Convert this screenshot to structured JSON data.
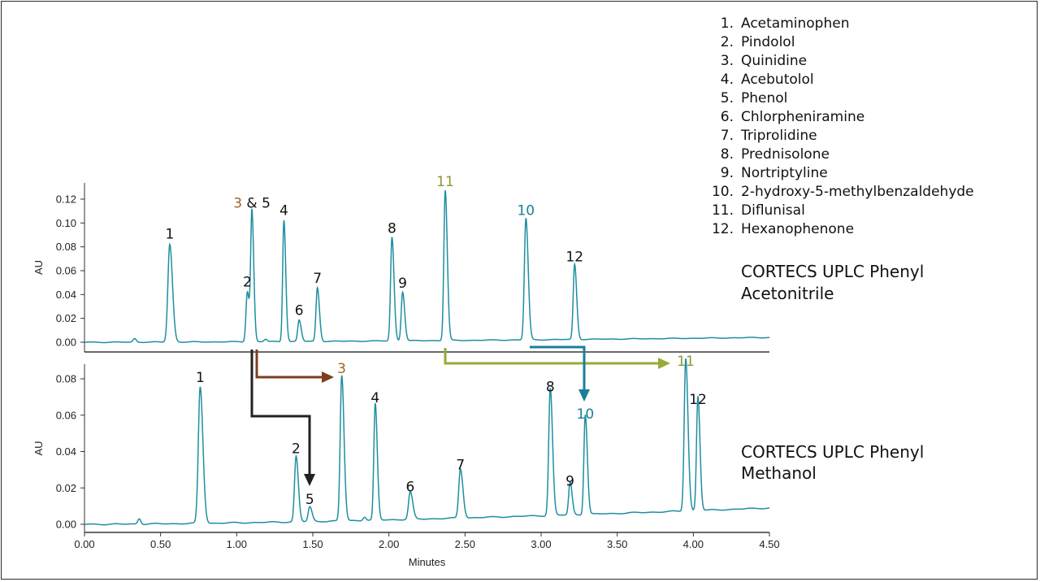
{
  "colors": {
    "trace": "#1f8ea0",
    "peak3": "#a0602a",
    "peak10": "#1a7f99",
    "peak11": "#8a9a2c",
    "arrow3": "#7b3f1d",
    "arrow5": "#222222",
    "arrow10": "#1a7f99",
    "arrow11": "#9aaa33"
  },
  "legend": [
    "1. Acetaminophen",
    "2. Pindolol",
    "3. Quinidine",
    "4. Acebutolol",
    "5. Phenol",
    "6. Chlorpheniramine",
    "7. Triprolidine",
    "8. Prednisolone",
    "9. Nortriptyline",
    "10. 2-hydroxy-5-methylbenzaldehyde",
    "11. Diflunisal",
    "12. Hexanophenone"
  ],
  "chart_data": [
    {
      "type": "line",
      "panel": "top",
      "label_line1": "CORTECS UPLC Phenyl",
      "label_line2": "Acetonitrile",
      "ylabel": "AU",
      "xlim": [
        0,
        4.5
      ],
      "ylim": [
        -0.005,
        0.13
      ],
      "yticks": [
        "0.00",
        "0.02",
        "0.04",
        "0.06",
        "0.08",
        "0.10",
        "0.12"
      ],
      "baseline_start": 0.0,
      "baseline_end": 0.004,
      "peaks": [
        {
          "id": "1",
          "label": "1",
          "x": 0.56,
          "y": 0.082,
          "w": 0.012
        },
        {
          "id": "2",
          "label": "2",
          "x": 1.07,
          "y": 0.042,
          "w": 0.009
        },
        {
          "id": "3&5",
          "label": "",
          "x": 1.1,
          "y": 0.108,
          "w": 0.008
        },
        {
          "id": "4",
          "label": "4",
          "x": 1.31,
          "y": 0.102,
          "w": 0.008
        },
        {
          "id": "6",
          "label": "6",
          "x": 1.41,
          "y": 0.018,
          "w": 0.009
        },
        {
          "id": "7",
          "label": "7",
          "x": 1.53,
          "y": 0.045,
          "w": 0.009
        },
        {
          "id": "8",
          "label": "8",
          "x": 2.02,
          "y": 0.087,
          "w": 0.009
        },
        {
          "id": "9",
          "label": "9",
          "x": 2.09,
          "y": 0.041,
          "w": 0.009
        },
        {
          "id": "11",
          "label": "11",
          "x": 2.37,
          "y": 0.126,
          "w": 0.009
        },
        {
          "id": "10",
          "label": "10",
          "x": 2.9,
          "y": 0.102,
          "w": 0.01
        },
        {
          "id": "12",
          "label": "12",
          "x": 3.22,
          "y": 0.063,
          "w": 0.009
        }
      ],
      "minor_bumps": [
        {
          "x": 0.33,
          "y": 0.003,
          "w": 0.01
        },
        {
          "x": 1.19,
          "y": 0.002,
          "w": 0.01
        }
      ],
      "combined_label": {
        "part1": "3",
        "part2": "& 5"
      }
    },
    {
      "type": "line",
      "panel": "bottom",
      "label_line1": "CORTECS UPLC Phenyl",
      "label_line2": "Methanol",
      "ylabel": "AU",
      "xlabel": "Minutes",
      "xlim": [
        0,
        4.5
      ],
      "ylim": [
        -0.004,
        0.088
      ],
      "xticks": [
        "0.00",
        "0.50",
        "1.00",
        "1.50",
        "2.00",
        "2.50",
        "3.00",
        "3.50",
        "4.00",
        "4.50"
      ],
      "yticks": [
        "0.00",
        "0.02",
        "0.04",
        "0.06",
        "0.08"
      ],
      "baseline_start": 0.0,
      "baseline_end": 0.009,
      "peaks": [
        {
          "id": "1",
          "label": "1",
          "x": 0.76,
          "y": 0.075,
          "w": 0.012
        },
        {
          "id": "2",
          "label": "2",
          "x": 1.39,
          "y": 0.036,
          "w": 0.01
        },
        {
          "id": "5",
          "label": "5",
          "x": 1.48,
          "y": 0.008,
          "w": 0.01
        },
        {
          "id": "3",
          "label": "3",
          "x": 1.69,
          "y": 0.08,
          "w": 0.01
        },
        {
          "id": "4",
          "label": "4",
          "x": 1.91,
          "y": 0.064,
          "w": 0.009
        },
        {
          "id": "6",
          "label": "6",
          "x": 2.14,
          "y": 0.015,
          "w": 0.011
        },
        {
          "id": "7",
          "label": "7",
          "x": 2.47,
          "y": 0.027,
          "w": 0.011
        },
        {
          "id": "8",
          "label": "8",
          "x": 3.06,
          "y": 0.07,
          "w": 0.01
        },
        {
          "id": "9",
          "label": "9",
          "x": 3.19,
          "y": 0.018,
          "w": 0.009
        },
        {
          "id": "10",
          "label": "10",
          "x": 3.29,
          "y": 0.055,
          "w": 0.009
        },
        {
          "id": "11",
          "label": "11",
          "x": 3.95,
          "y": 0.084,
          "w": 0.01
        },
        {
          "id": "12",
          "label": "12",
          "x": 4.03,
          "y": 0.063,
          "w": 0.009
        }
      ],
      "minor_bumps": [
        {
          "x": 0.36,
          "y": 0.003,
          "w": 0.01
        },
        {
          "x": 1.84,
          "y": 0.002,
          "w": 0.01
        }
      ]
    }
  ]
}
